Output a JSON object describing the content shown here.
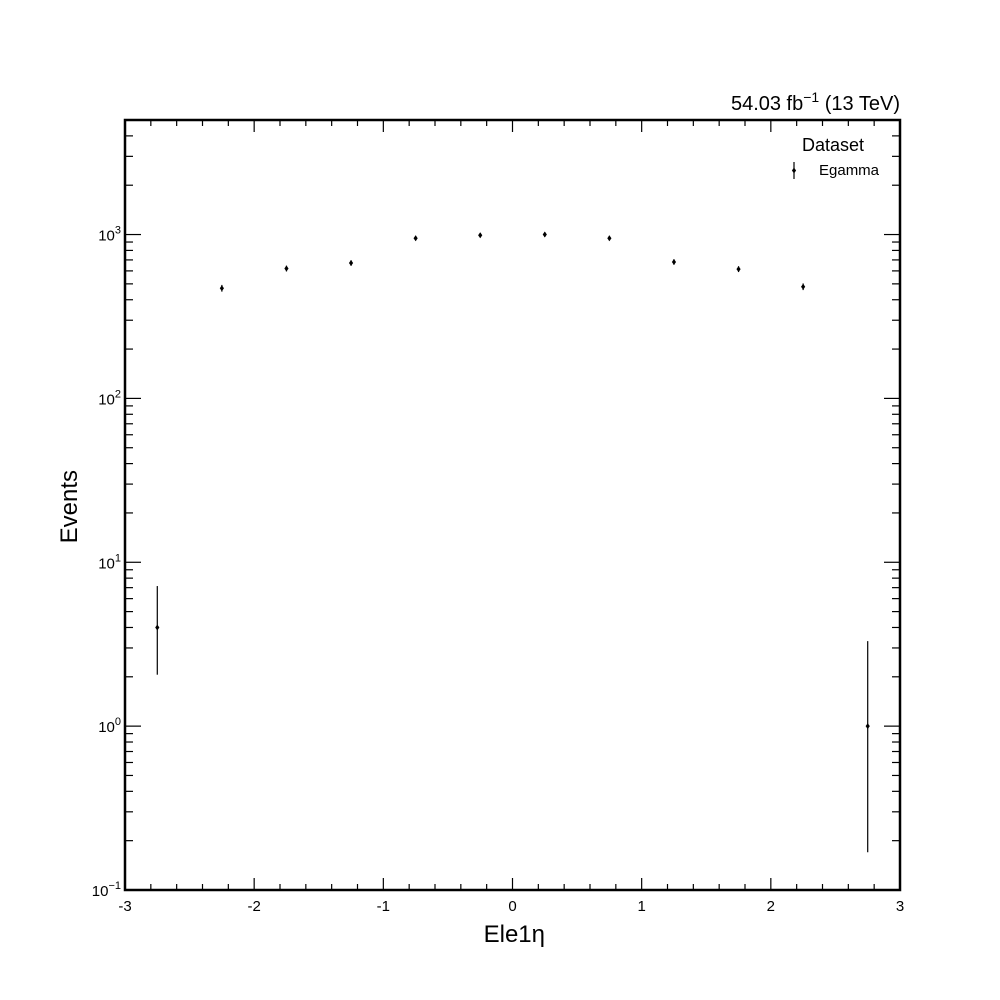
{
  "chart_data": {
    "type": "scatter",
    "xlabel": "Ele1η",
    "ylabel": "Events",
    "xlim": [
      -3,
      3
    ],
    "ylim": [
      0.1,
      5000
    ],
    "yscale": "log",
    "grid": false,
    "legend_placement": "top-right",
    "legend_title": "Dataset",
    "lumi_label": {
      "value": "54.03 fb",
      "exponent": "−1",
      "energy": " (13 TeV)"
    },
    "x_tick_labels": [
      "-3",
      "-2",
      "-1",
      "0",
      "1",
      "2",
      "3"
    ],
    "y_tick_labels": [
      {
        "base": "10",
        "exp": "−1",
        "value": 0.1
      },
      {
        "base": "10",
        "exp": "0",
        "value": 1
      },
      {
        "base": "10",
        "exp": "1",
        "value": 10
      },
      {
        "base": "10",
        "exp": "2",
        "value": 100
      },
      {
        "base": "10",
        "exp": "3",
        "value": 1000
      }
    ],
    "series": [
      {
        "name": "Egamma",
        "color": "#000000",
        "x": [
          -2.75,
          -2.25,
          -1.75,
          -1.25,
          -0.75,
          -0.25,
          0.25,
          0.75,
          1.25,
          1.75,
          2.25,
          2.75
        ],
        "y": [
          4,
          470,
          620,
          670,
          950,
          990,
          1000,
          950,
          680,
          615,
          480,
          1
        ],
        "yerr_low": [
          1.94,
          21.7,
          24.9,
          25.9,
          30.8,
          31.5,
          31.6,
          30.8,
          26.1,
          24.8,
          21.9,
          0.83
        ],
        "yerr_high": [
          3.16,
          22.7,
          25.9,
          26.9,
          31.8,
          32.5,
          32.6,
          31.8,
          27.1,
          25.8,
          22.9,
          2.3
        ]
      }
    ]
  }
}
